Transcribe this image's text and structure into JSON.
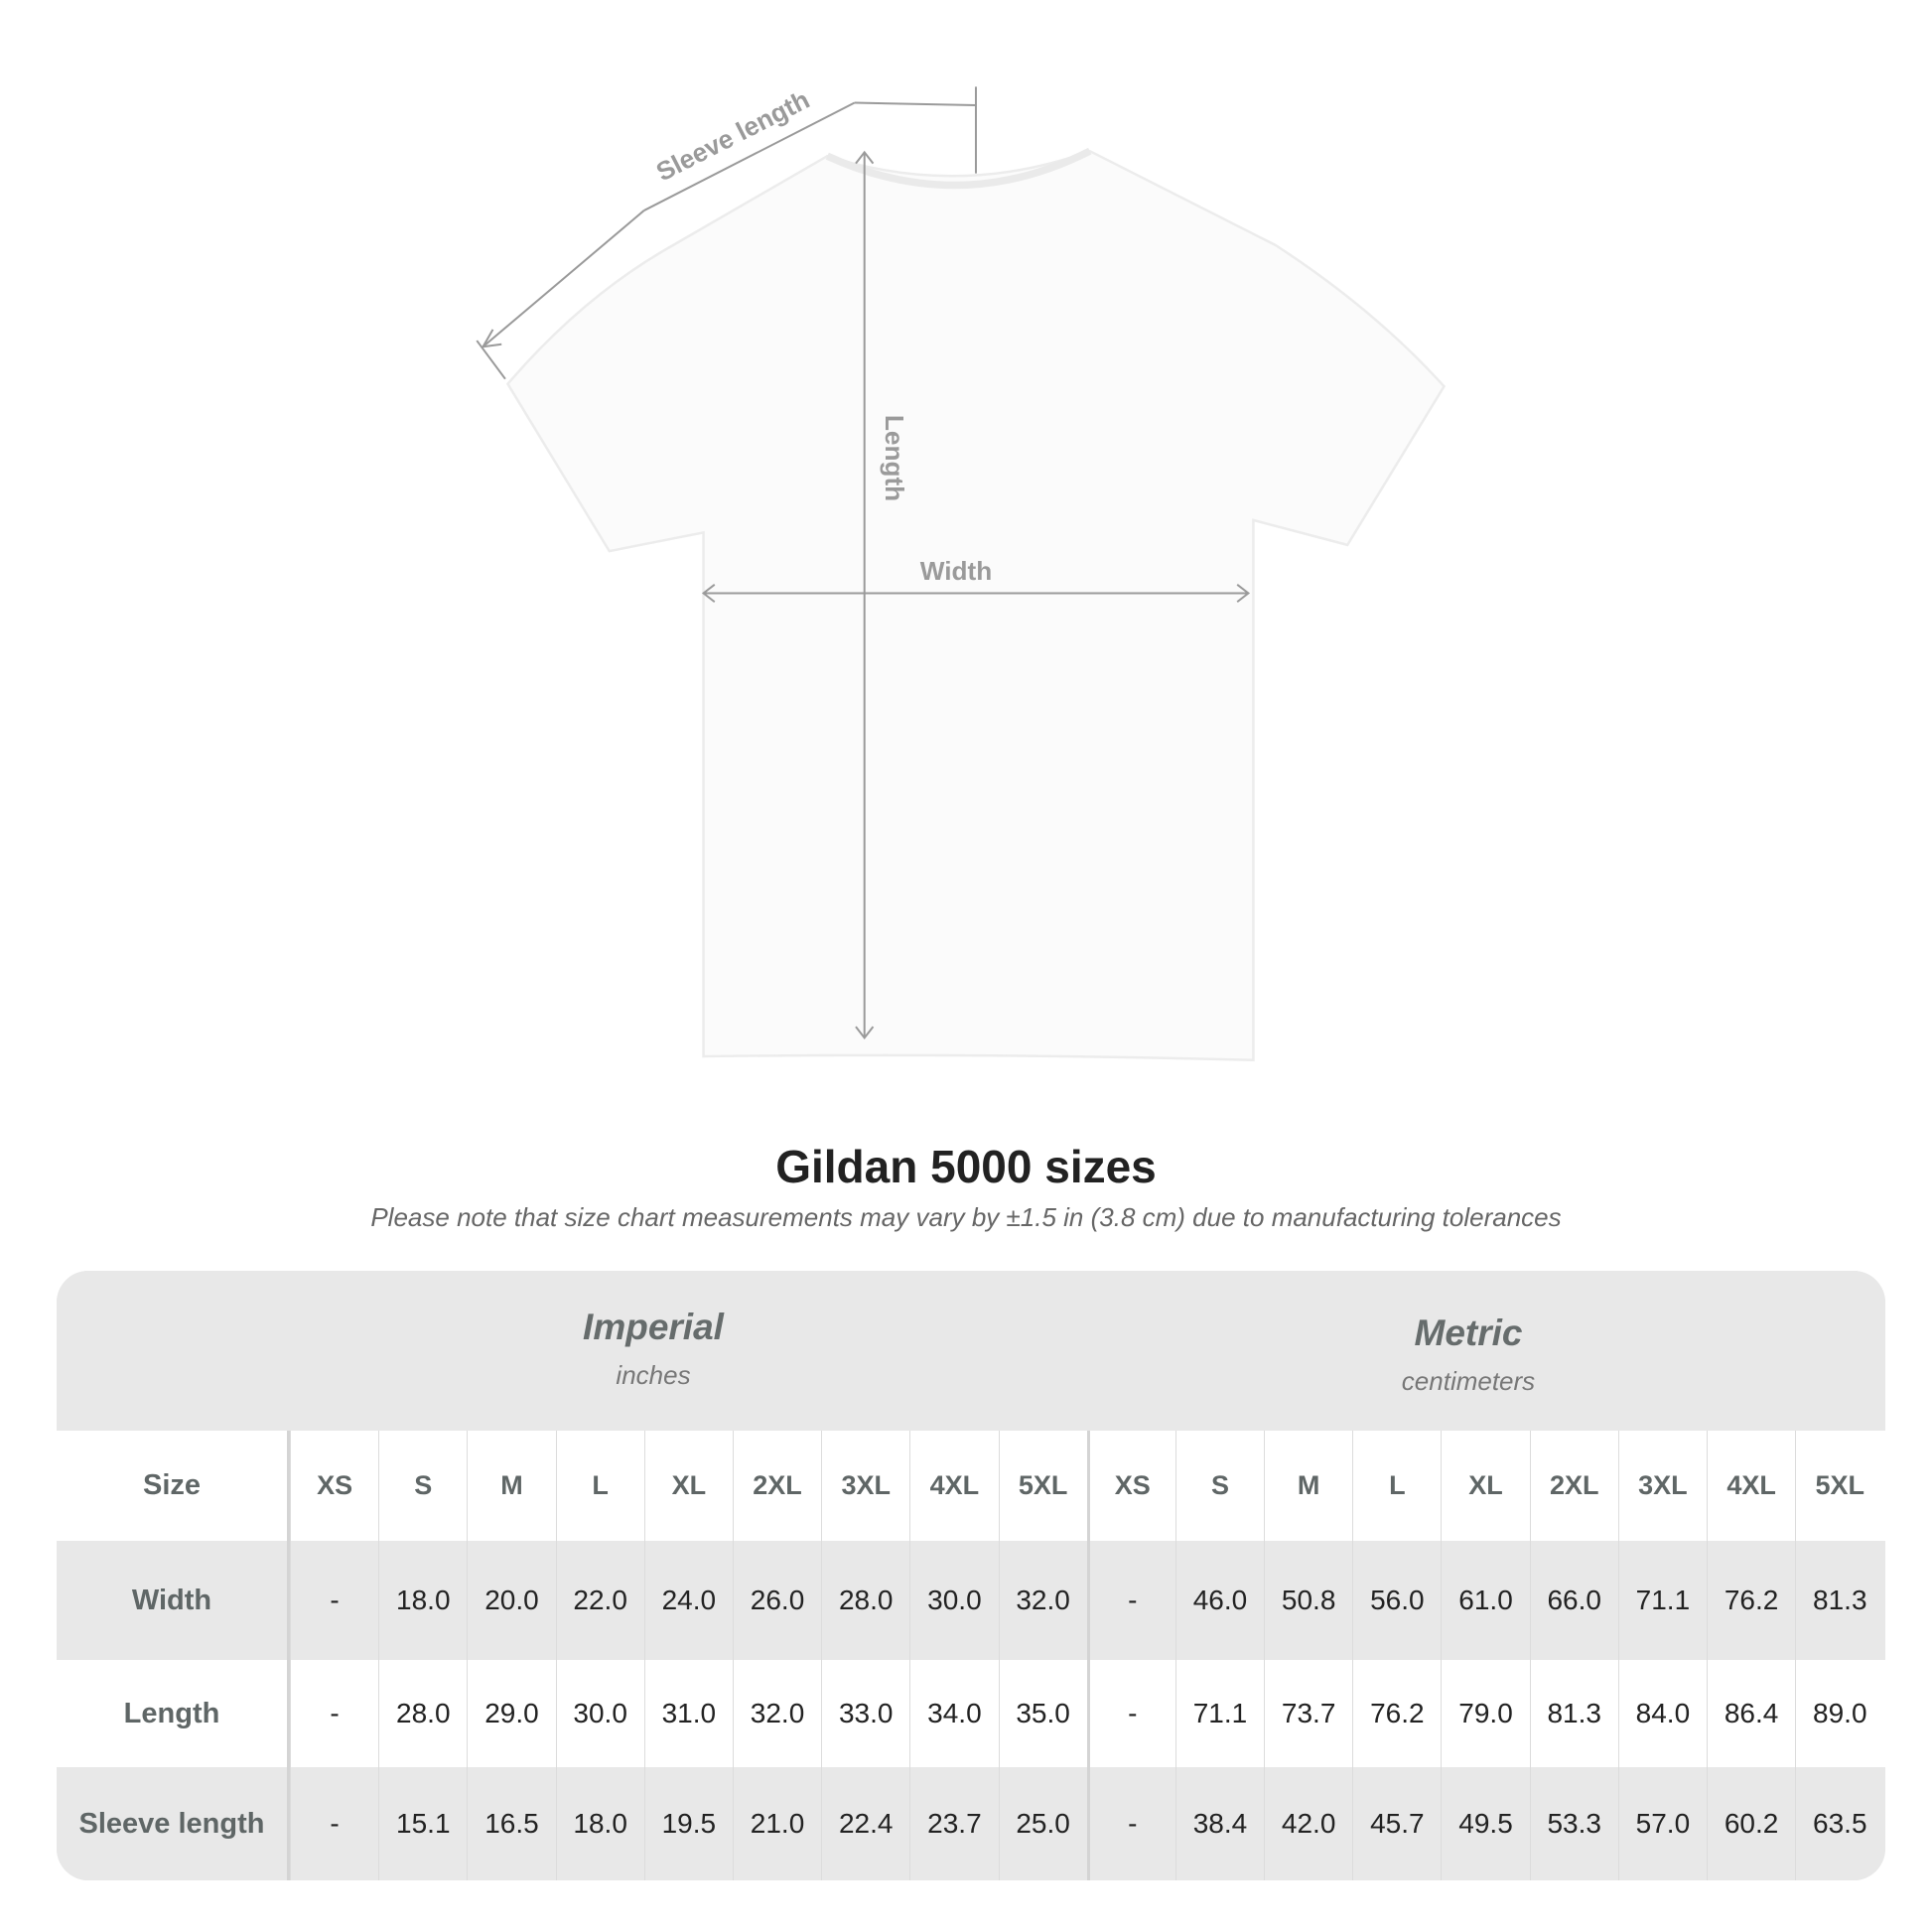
{
  "diagram": {
    "sleeve_label": "Sleeve length",
    "length_label": "Length",
    "width_label": "Width"
  },
  "title": "Gildan 5000 sizes",
  "subtitle": "Please note that size chart measurements may vary by ±1.5 in (3.8 cm) due to manufacturing tolerances",
  "table": {
    "imperial": {
      "name": "Imperial",
      "unit": "inches"
    },
    "metric": {
      "name": "Metric",
      "unit": "centimeters"
    },
    "size_label": "Size",
    "sizes": [
      "XS",
      "S",
      "M",
      "L",
      "XL",
      "2XL",
      "3XL",
      "4XL",
      "5XL"
    ],
    "rows": [
      {
        "label": "Width",
        "imperial": [
          "-",
          "18.0",
          "20.0",
          "22.0",
          "24.0",
          "26.0",
          "28.0",
          "30.0",
          "32.0"
        ],
        "metric": [
          "-",
          "46.0",
          "50.8",
          "56.0",
          "61.0",
          "66.0",
          "71.1",
          "76.2",
          "81.3"
        ]
      },
      {
        "label": "Length",
        "imperial": [
          "-",
          "28.0",
          "29.0",
          "30.0",
          "31.0",
          "32.0",
          "33.0",
          "34.0",
          "35.0"
        ],
        "metric": [
          "-",
          "71.1",
          "73.7",
          "76.2",
          "79.0",
          "81.3",
          "84.0",
          "86.4",
          "89.0"
        ]
      },
      {
        "label": "Sleeve length",
        "imperial": [
          "-",
          "15.1",
          "16.5",
          "18.0",
          "19.5",
          "21.0",
          "22.4",
          "23.7",
          "25.0"
        ],
        "metric": [
          "-",
          "38.4",
          "42.0",
          "45.7",
          "49.5",
          "53.3",
          "57.0",
          "60.2",
          "63.5"
        ]
      }
    ]
  },
  "colors": {
    "band": "#e8e8e8",
    "header_text": "#5f6666",
    "arrow": "#999999"
  }
}
